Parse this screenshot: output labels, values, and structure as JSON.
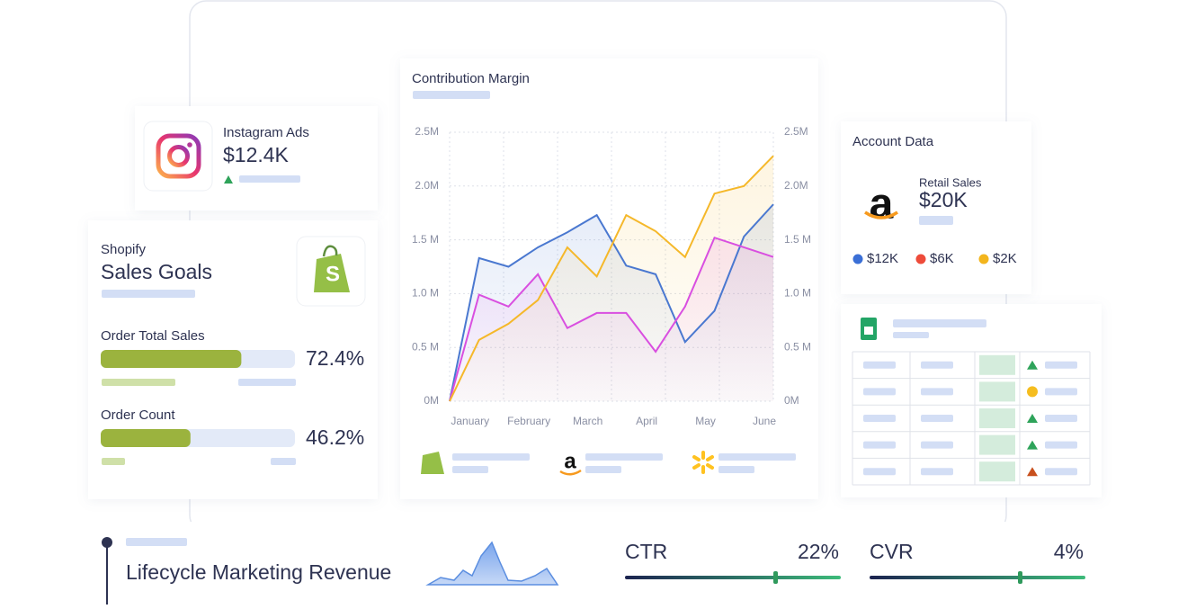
{
  "instagram": {
    "title": "Instagram Ads",
    "value": "$12.4K"
  },
  "shopify": {
    "label": "Shopify",
    "title": "Sales Goals",
    "goals": [
      {
        "name": "Order Total Sales",
        "value": 72.4,
        "value_label": "72.4%"
      },
      {
        "name": "Order Count",
        "value": 46.2,
        "value_label": "46.2%"
      }
    ]
  },
  "chart_data": {
    "type": "line",
    "title": "Contribution Margin",
    "categories": [
      null,
      "January",
      null,
      "February",
      null,
      "March",
      null,
      "April",
      null,
      "May",
      null,
      "June"
    ],
    "series": [
      {
        "color": "#4a78d0",
        "values": [
          0,
          1.33,
          1.25,
          1.43,
          1.57,
          1.73,
          1.26,
          1.18,
          0.55,
          0.84,
          1.53,
          1.83
        ]
      },
      {
        "color": "#d94fe0",
        "values": [
          0,
          0.99,
          0.88,
          1.18,
          0.68,
          0.82,
          0.82,
          0.46,
          0.88,
          1.52,
          1.43,
          1.34
        ]
      },
      {
        "color": "#f5b82a",
        "values": [
          0,
          0.57,
          0.72,
          0.94,
          1.43,
          1.16,
          1.73,
          1.58,
          1.34,
          1.93,
          2.0,
          2.28
        ]
      }
    ],
    "ylim": [
      0,
      2.5
    ],
    "yticks": [
      {
        "value": 0,
        "label": "0M"
      },
      {
        "value": 0.5,
        "label": "0.5 M"
      },
      {
        "value": 1,
        "label": "1.0 M"
      },
      {
        "value": 1.5,
        "label": "1.5 M"
      },
      {
        "value": 2,
        "label": "2.0M"
      },
      {
        "value": 2.5,
        "label": "2.5M"
      }
    ],
    "y2lim": [
      0,
      2.5
    ],
    "y2ticks": [
      {
        "value": 0,
        "label": "0M"
      },
      {
        "value": 0.5,
        "label": "0.5 M"
      },
      {
        "value": 1,
        "label": "1.0 M"
      },
      {
        "value": 1.5,
        "label": "1.5 M"
      },
      {
        "value": 2,
        "label": "2.0M"
      },
      {
        "value": 2.5,
        "label": "2.5M"
      }
    ],
    "grid": true
  },
  "account": {
    "title": "Account Data",
    "metric": "Retail Sales",
    "value": "$20K",
    "legend": [
      {
        "label": "$12K",
        "color": "#3b6fd6"
      },
      {
        "label": "$6K",
        "color": "#ee4b3a"
      },
      {
        "label": "$2K",
        "color": "#f3b51d"
      }
    ]
  },
  "lifecycle": {
    "title": "Lifecycle Marketing Revenue"
  },
  "kpis": [
    {
      "name": "CTR",
      "value_label": "22%"
    },
    {
      "name": "CVR",
      "value_label": "4%"
    }
  ]
}
